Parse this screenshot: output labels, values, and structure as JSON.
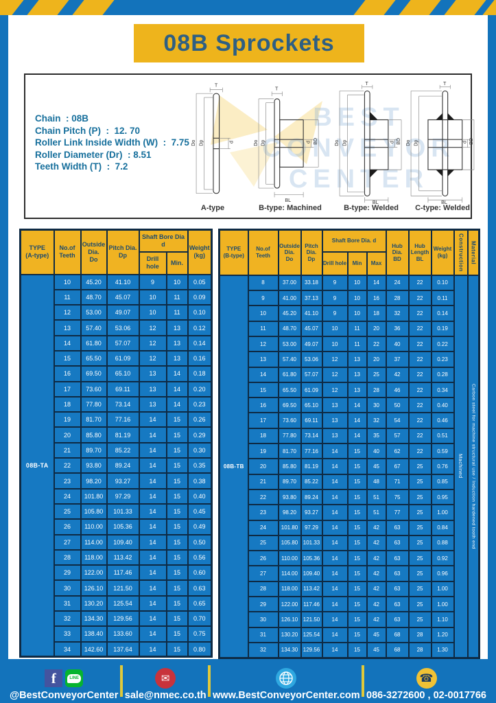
{
  "title": "08B Sprockets",
  "specs": {
    "lines": [
      "Chain  : 08B",
      "Chain Pitch (P)  :  12. 70",
      "Roller Link Inside Width (W)  :  7.75",
      "Roller Diameter (Dr)  : 8.51",
      "Teeth Width (T)  :  7.2"
    ]
  },
  "diagram": {
    "captions": [
      "A-type",
      "B-type: Machined",
      "B-type: Welded",
      "C-type: Welded"
    ],
    "dims": {
      "t": "T",
      "do": "Do",
      "dp": "Dp",
      "d": "d",
      "bd": "BD",
      "bl": "BL"
    },
    "watermark_lines": [
      "BEST",
      "CONVEYOR",
      "CENTER"
    ]
  },
  "tables": {
    "A": {
      "type_label": "08B-TA",
      "headers": {
        "type": "TYPE\n(A-type)",
        "teeth": "No.of\nTeeth",
        "outside": "Outside\nDia.\nDo",
        "pitch": "Pitch Dia.\nDp",
        "shaft": "Shaft Bore Dia d",
        "drill": "Drill hole",
        "min": "Min.",
        "weight": "Weight\n(kg)"
      },
      "rows": [
        [
          "10",
          "45.20",
          "41.10",
          "9",
          "10",
          "0.05"
        ],
        [
          "11",
          "48.70",
          "45.07",
          "10",
          "11",
          "0.09"
        ],
        [
          "12",
          "53.00",
          "49.07",
          "10",
          "11",
          "0.10"
        ],
        [
          "13",
          "57.40",
          "53.06",
          "12",
          "13",
          "0.12"
        ],
        [
          "14",
          "61.80",
          "57.07",
          "12",
          "13",
          "0.14"
        ],
        [
          "15",
          "65.50",
          "61.09",
          "12",
          "13",
          "0.16"
        ],
        [
          "16",
          "69.50",
          "65.10",
          "13",
          "14",
          "0.18"
        ],
        [
          "17",
          "73.60",
          "69.11",
          "13",
          "14",
          "0.20"
        ],
        [
          "18",
          "77.80",
          "73.14",
          "13",
          "14",
          "0.23"
        ],
        [
          "19",
          "81.70",
          "77.16",
          "14",
          "15",
          "0.26"
        ],
        [
          "20",
          "85.80",
          "81.19",
          "14",
          "15",
          "0.29"
        ],
        [
          "21",
          "89.70",
          "85.22",
          "14",
          "15",
          "0.30"
        ],
        [
          "22",
          "93.80",
          "89.24",
          "14",
          "15",
          "0.35"
        ],
        [
          "23",
          "98.20",
          "93.27",
          "14",
          "15",
          "0.38"
        ],
        [
          "24",
          "101.80",
          "97.29",
          "14",
          "15",
          "0.40"
        ],
        [
          "25",
          "105.80",
          "101.33",
          "14",
          "15",
          "0.45"
        ],
        [
          "26",
          "110.00",
          "105.36",
          "14",
          "15",
          "0.49"
        ],
        [
          "27",
          "114.00",
          "109.40",
          "14",
          "15",
          "0.50"
        ],
        [
          "28",
          "118.00",
          "113.42",
          "14",
          "15",
          "0.56"
        ],
        [
          "29",
          "122.00",
          "117.46",
          "14",
          "15",
          "0.60"
        ],
        [
          "30",
          "126.10",
          "121.50",
          "14",
          "15",
          "0.63"
        ],
        [
          "31",
          "130.20",
          "125.54",
          "14",
          "15",
          "0.65"
        ],
        [
          "32",
          "134.30",
          "129.56",
          "14",
          "15",
          "0.70"
        ],
        [
          "33",
          "138.40",
          "133.60",
          "14",
          "15",
          "0.75"
        ],
        [
          "34",
          "142.60",
          "137.64",
          "14",
          "15",
          "0.80"
        ]
      ]
    },
    "B": {
      "type_label": "08B-TB",
      "construction": "Machined",
      "material": "Carbon steel for machine structural use / Induction hardened tooth end",
      "headers": {
        "type": "TYPE\n(B-type)",
        "teeth": "No.of\nTeeth",
        "outside": "Outside\nDia.\nDo",
        "pitch": "Pitch\nDia.\nDp",
        "shaft": "Shaft Bore Dia.  d",
        "drill": "Drill hole",
        "min": "Min",
        "max": "Max",
        "hub_dia": "Hub\nDia.\nBD",
        "hub_len": "Hub\nLength\nBL",
        "weight": "Weight\n(kg)",
        "construction": "Construction",
        "material": "Material"
      },
      "rows": [
        [
          "8",
          "37.00",
          "33.18",
          "9",
          "10",
          "14",
          "24",
          "22",
          "0.10"
        ],
        [
          "9",
          "41.00",
          "37.13",
          "9",
          "10",
          "16",
          "28",
          "22",
          "0.11"
        ],
        [
          "10",
          "45.20",
          "41.10",
          "9",
          "10",
          "18",
          "32",
          "22",
          "0.14"
        ],
        [
          "11",
          "48.70",
          "45.07",
          "10",
          "11",
          "20",
          "36",
          "22",
          "0.19"
        ],
        [
          "12",
          "53.00",
          "49.07",
          "10",
          "11",
          "22",
          "40",
          "22",
          "0.22"
        ],
        [
          "13",
          "57.40",
          "53.06",
          "12",
          "13",
          "20",
          "37",
          "22",
          "0.23"
        ],
        [
          "14",
          "61.80",
          "57.07",
          "12",
          "13",
          "25",
          "42",
          "22",
          "0.28"
        ],
        [
          "15",
          "65.50",
          "61.09",
          "12",
          "13",
          "28",
          "46",
          "22",
          "0.34"
        ],
        [
          "16",
          "69.50",
          "65.10",
          "13",
          "14",
          "30",
          "50",
          "22",
          "0.40"
        ],
        [
          "17",
          "73.60",
          "69.11",
          "13",
          "14",
          "32",
          "54",
          "22",
          "0.46"
        ],
        [
          "18",
          "77.80",
          "73.14",
          "13",
          "14",
          "35",
          "57",
          "22",
          "0.51"
        ],
        [
          "19",
          "81.70",
          "77.16",
          "14",
          "15",
          "40",
          "62",
          "22",
          "0.59"
        ],
        [
          "20",
          "85.80",
          "81.19",
          "14",
          "15",
          "45",
          "67",
          "25",
          "0.76"
        ],
        [
          "21",
          "89.70",
          "85.22",
          "14",
          "15",
          "48",
          "71",
          "25",
          "0.85"
        ],
        [
          "22",
          "93.80",
          "89.24",
          "14",
          "15",
          "51",
          "75",
          "25",
          "0.95"
        ],
        [
          "23",
          "98.20",
          "93.27",
          "14",
          "15",
          "51",
          "77",
          "25",
          "1.00"
        ],
        [
          "24",
          "101.80",
          "97.29",
          "14",
          "15",
          "42",
          "63",
          "25",
          "0.84"
        ],
        [
          "25",
          "105.80",
          "101.33",
          "14",
          "15",
          "42",
          "63",
          "25",
          "0.88"
        ],
        [
          "26",
          "110.00",
          "105.36",
          "14",
          "15",
          "42",
          "63",
          "25",
          "0.92"
        ],
        [
          "27",
          "114.00",
          "109.40",
          "14",
          "15",
          "42",
          "63",
          "25",
          "0.96"
        ],
        [
          "28",
          "118.00",
          "113.42",
          "14",
          "15",
          "42",
          "63",
          "25",
          "1.00"
        ],
        [
          "29",
          "122.00",
          "117.46",
          "14",
          "15",
          "42",
          "63",
          "25",
          "1.00"
        ],
        [
          "30",
          "126.10",
          "121.50",
          "14",
          "15",
          "42",
          "63",
          "25",
          "1.10"
        ],
        [
          "31",
          "130.20",
          "125.54",
          "14",
          "15",
          "45",
          "68",
          "28",
          "1.20"
        ],
        [
          "32",
          "134.30",
          "129.56",
          "14",
          "15",
          "45",
          "68",
          "28",
          "1.30"
        ]
      ]
    }
  },
  "footer": {
    "social": "@BestConveyorCenter",
    "facebook_letter": "f",
    "line_text": "LINE",
    "email": "sale@nmec.co.th",
    "website": "www.BestConveyorCenter.com",
    "phone": "086-3272600 , 02-0017766"
  },
  "colors": {
    "frame_blue": "#1373bb",
    "cell_blue": "#1679c2",
    "accent_yellow": "#eeb41c",
    "header_yellow": "#f0b322",
    "border_navy": "#0e2a44",
    "title_text": "#2e5f83",
    "specs_text": "#166f9c"
  }
}
